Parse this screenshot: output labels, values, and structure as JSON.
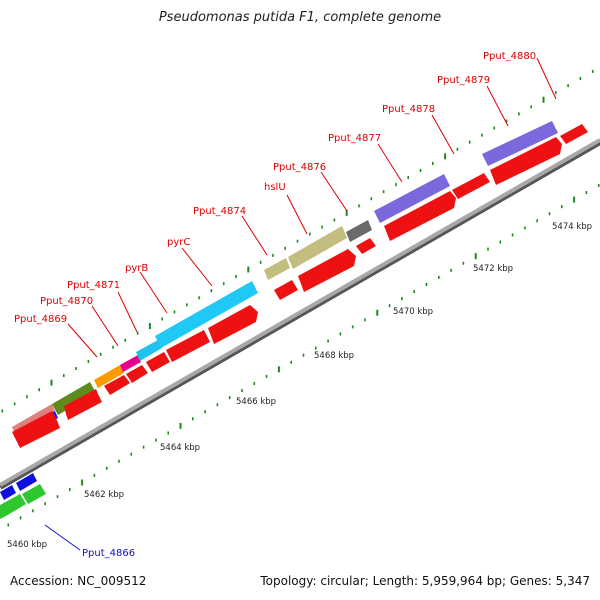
{
  "title": "Pseudomonas putida F1, complete genome",
  "footer": {
    "accession": "Accession: NC_009512",
    "summary": "Topology: circular; Length: 5,959,964 bp; Genes: 5,347"
  },
  "colors": {
    "backbone": "#9a9a9a",
    "cds_red": "#ee1111",
    "tick": "#1a8c1a",
    "label_red": "#dd0000",
    "label_blue": "#1111cc"
  },
  "tick_labels": [
    "5460 kbp",
    "5462 kbp",
    "5464 kbp",
    "5466 kbp",
    "5468 kbp",
    "5470 kbp",
    "5472 kbp",
    "5474 kbp"
  ],
  "gene_labels": [
    {
      "name": "Pput_4866",
      "color": "blue"
    },
    {
      "name": "Pput_4869",
      "color": "red"
    },
    {
      "name": "Pput_4870",
      "color": "red"
    },
    {
      "name": "Pput_4871",
      "color": "red"
    },
    {
      "name": "pyrB",
      "color": "red"
    },
    {
      "name": "pyrC",
      "color": "red"
    },
    {
      "name": "Pput_4874",
      "color": "red"
    },
    {
      "name": "hslU",
      "color": "red"
    },
    {
      "name": "Pput_4876",
      "color": "red"
    },
    {
      "name": "Pput_4877",
      "color": "red"
    },
    {
      "name": "Pput_4878",
      "color": "red"
    },
    {
      "name": "Pput_4879",
      "color": "red"
    },
    {
      "name": "Pput_4880",
      "color": "red"
    }
  ]
}
